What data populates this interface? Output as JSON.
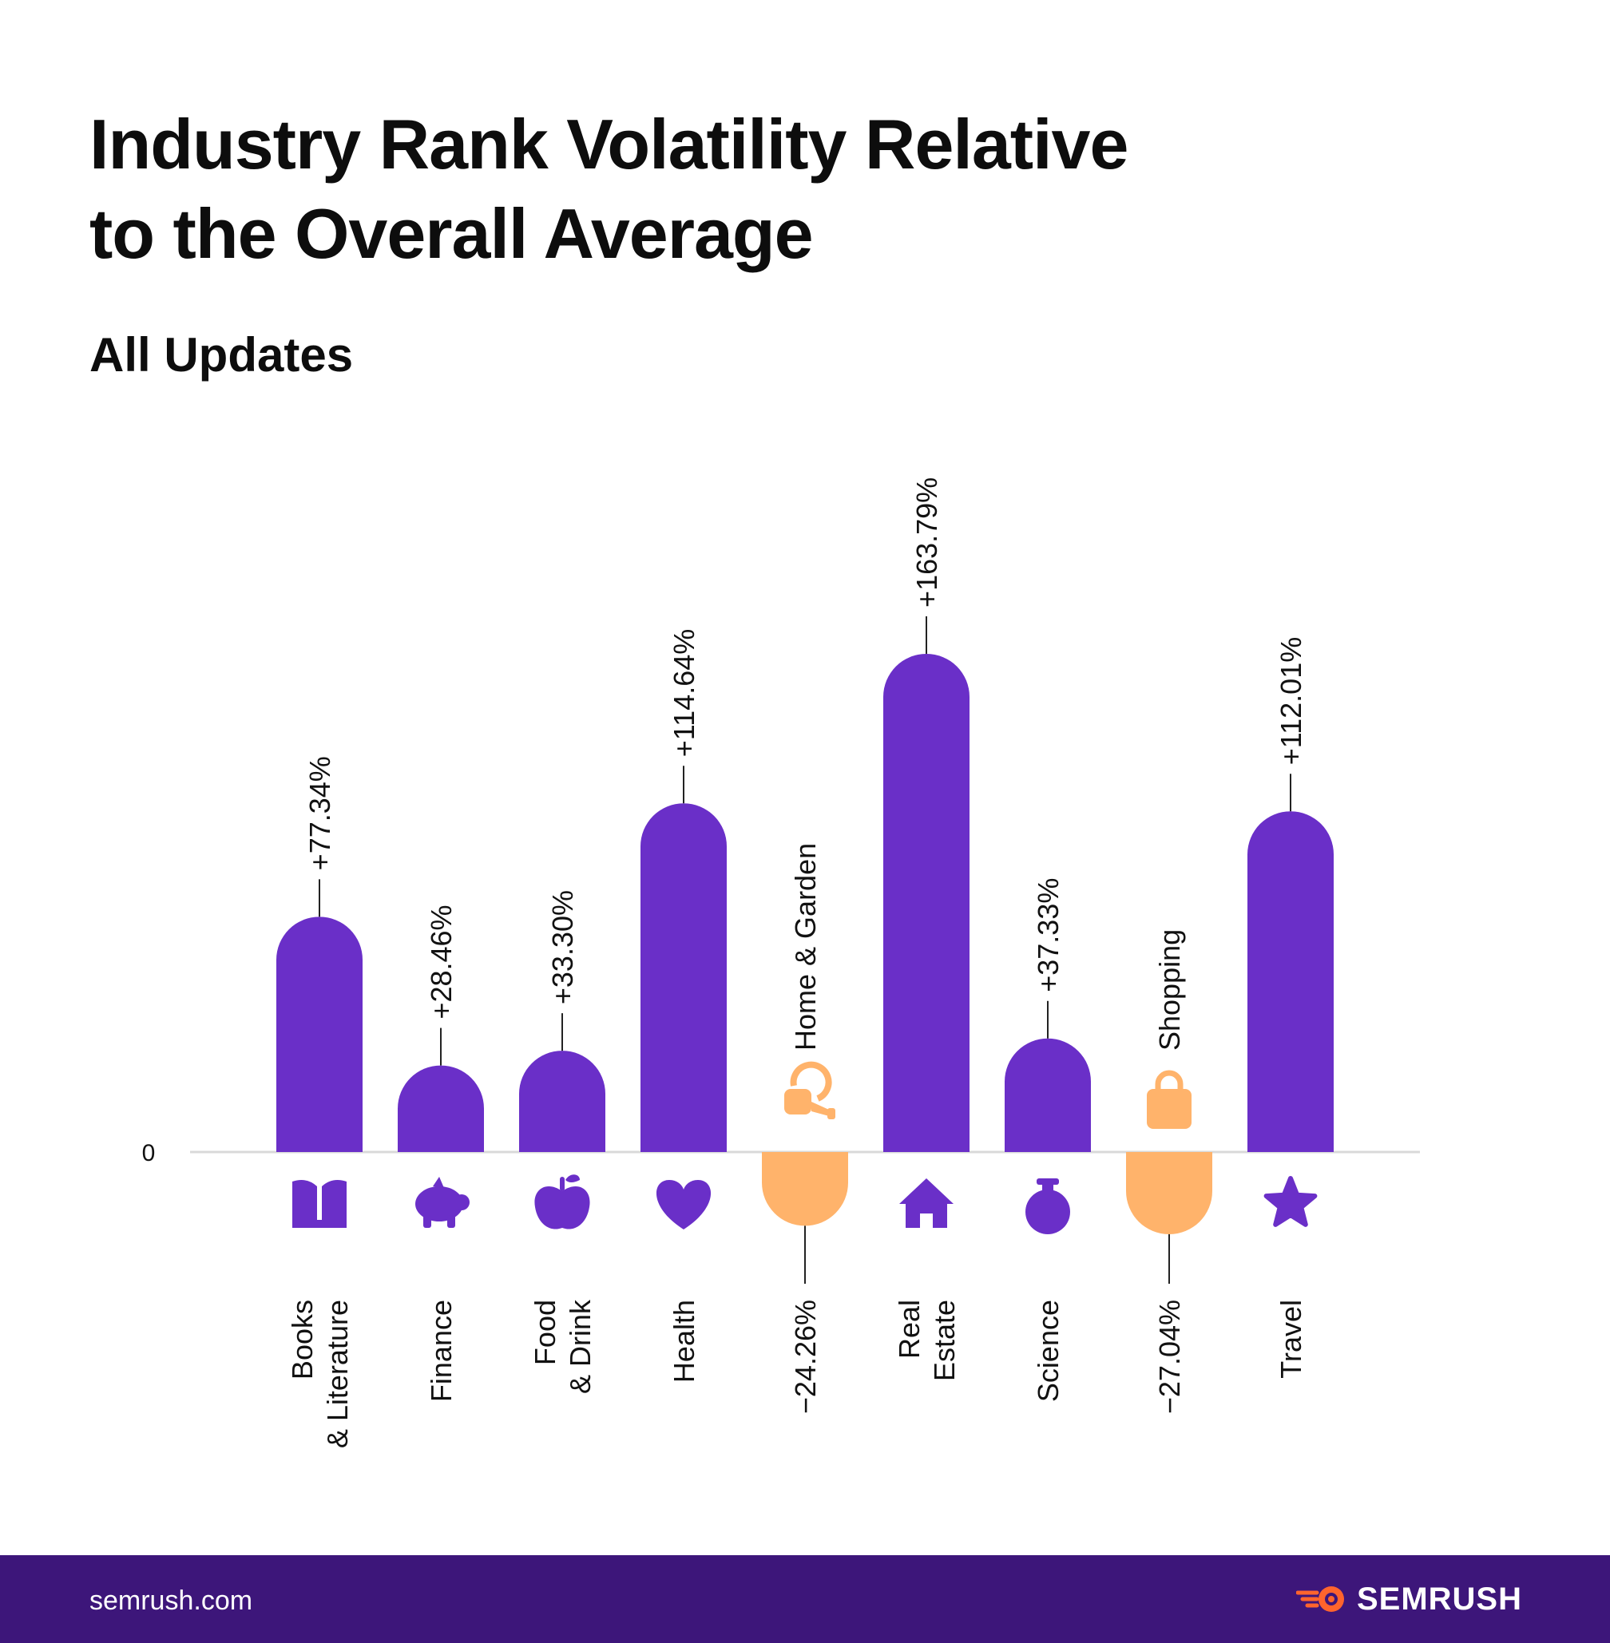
{
  "title_line1": "Industry Rank Volatility Relative",
  "title_line2": "to the Overall Average",
  "subtitle": "All Updates",
  "footer": {
    "url": "semrush.com",
    "brand": "SEMRUSH"
  },
  "colors": {
    "positive": "#6a2fc8",
    "negative": "#ffb36b",
    "baseline": "#d9d9d9",
    "footer_bg": "#3d167a",
    "logo_accent": "#ff642d"
  },
  "chart_data": {
    "type": "bar",
    "title": "Industry Rank Volatility Relative to the Overall Average",
    "subtitle": "All Updates",
    "zero_label": "0",
    "categories": [
      {
        "label": [
          "Books",
          "& Literature"
        ],
        "value": 77.34,
        "value_label": "+77.34%",
        "icon": "book-icon"
      },
      {
        "label": [
          "Finance"
        ],
        "value": 28.46,
        "value_label": "+28.46%",
        "icon": "piggy-bank-icon"
      },
      {
        "label": [
          "Food",
          "& Drink"
        ],
        "value": 33.3,
        "value_label": "+33.30%",
        "icon": "apple-icon"
      },
      {
        "label": [
          "Health"
        ],
        "value": 114.64,
        "value_label": "+114.64%",
        "icon": "heart-icon"
      },
      {
        "label": [
          "Home & Garden"
        ],
        "value": -24.26,
        "value_label": "−24.26%",
        "icon": "watering-can-icon"
      },
      {
        "label": [
          "Real",
          "Estate"
        ],
        "value": 163.79,
        "value_label": "+163.79%",
        "icon": "house-icon"
      },
      {
        "label": [
          "Science"
        ],
        "value": 37.33,
        "value_label": "+37.33%",
        "icon": "flask-icon"
      },
      {
        "label": [
          "Shopping"
        ],
        "value": -27.04,
        "value_label": "−27.04%",
        "icon": "shopping-bag-icon"
      },
      {
        "label": [
          "Travel"
        ],
        "value": 112.01,
        "value_label": "+112.01%",
        "icon": "star-icon"
      }
    ]
  }
}
